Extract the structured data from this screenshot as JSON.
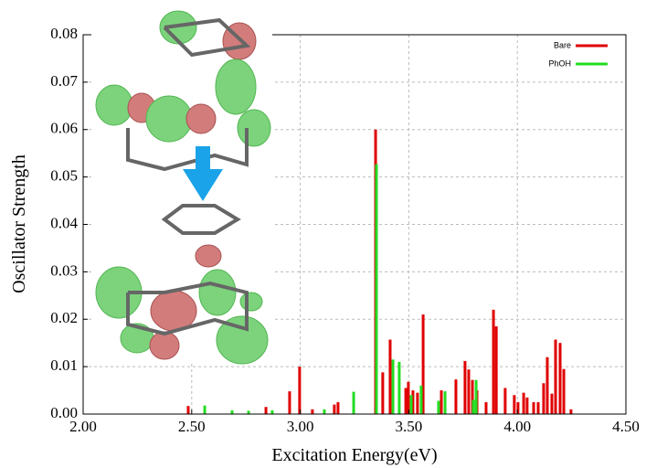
{
  "chart_data": {
    "type": "stick",
    "x_label": "Excitation Energy(eV)",
    "y_label": "Oscillator Strength",
    "xlim": [
      2.0,
      4.5
    ],
    "ylim": [
      0.0,
      0.08
    ],
    "xticks": [
      {
        "value": 2.0,
        "label": "2.00"
      },
      {
        "value": 2.5,
        "label": "2.50"
      },
      {
        "value": 3.0,
        "label": "3.00"
      },
      {
        "value": 3.5,
        "label": "3.50"
      },
      {
        "value": 4.0,
        "label": "4.00"
      },
      {
        "value": 4.5,
        "label": "4.50"
      }
    ],
    "yticks": [
      {
        "value": 0.0,
        "label": "0.00"
      },
      {
        "value": 0.01,
        "label": "0.01"
      },
      {
        "value": 0.02,
        "label": "0.02"
      },
      {
        "value": 0.03,
        "label": "0.03"
      },
      {
        "value": 0.04,
        "label": "0.04"
      },
      {
        "value": 0.05,
        "label": "0.05"
      },
      {
        "value": 0.06,
        "label": "0.06"
      },
      {
        "value": 0.07,
        "label": "0.07"
      },
      {
        "value": 0.08,
        "label": "0.08"
      }
    ],
    "grid": true,
    "legend": "upper right",
    "series": [
      {
        "name": "Bare",
        "color": "#e00000",
        "x": [
          2.484,
          2.842,
          2.951,
          2.997,
          3.056,
          3.157,
          3.174,
          3.347,
          3.38,
          3.414,
          3.486,
          3.498,
          3.519,
          3.54,
          3.566,
          3.65,
          3.717,
          3.759,
          3.776,
          3.793,
          3.814,
          3.856,
          3.89,
          3.903,
          3.944,
          3.986,
          4.003,
          4.029,
          4.045,
          4.075,
          4.096,
          4.121,
          4.138,
          4.159,
          4.176,
          4.197,
          4.214,
          4.247
        ],
        "values": [
          0.0017,
          0.0015,
          0.0048,
          0.01,
          0.001,
          0.002,
          0.0025,
          0.06,
          0.0088,
          0.0157,
          0.0055,
          0.0068,
          0.005,
          0.0045,
          0.021,
          0.005,
          0.0073,
          0.0112,
          0.0094,
          0.0072,
          0.005,
          0.0025,
          0.022,
          0.0185,
          0.0055,
          0.004,
          0.0025,
          0.0045,
          0.0035,
          0.0025,
          0.0025,
          0.0065,
          0.012,
          0.0043,
          0.0157,
          0.015,
          0.0095,
          0.001
        ]
      },
      {
        "name": "PhOH",
        "color": "#22dd22",
        "x": [
          2.56,
          2.686,
          2.762,
          2.871,
          3.111,
          3.246,
          3.351,
          3.427,
          3.456,
          3.511,
          3.557,
          3.637,
          3.667,
          3.797,
          3.81
        ],
        "values": [
          0.0018,
          0.0008,
          0.0007,
          0.0008,
          0.001,
          0.0047,
          0.0527,
          0.0115,
          0.011,
          0.004,
          0.006,
          0.0028,
          0.0048,
          0.003,
          0.0072
        ]
      }
    ]
  }
}
